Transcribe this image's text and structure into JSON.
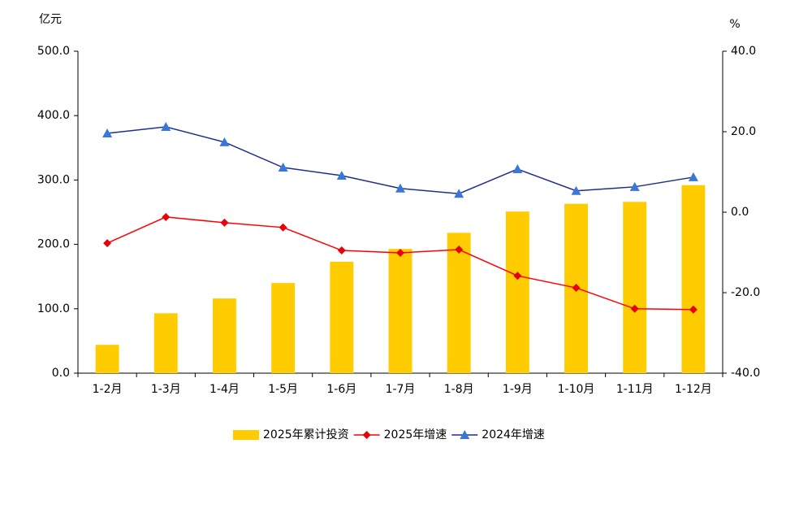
{
  "chart_data": {
    "type": "bar-line",
    "y_label": "亿元",
    "y2_label": "%",
    "categories": [
      "1-2月",
      "1-3月",
      "1-4月",
      "1-5月",
      "1-6月",
      "1-7月",
      "1-8月",
      "1-9月",
      "1-10月",
      "1-11月",
      "1-12月"
    ],
    "series": [
      {
        "name": "2025年累计投资",
        "type": "bar",
        "axis": "y",
        "color": "#FFCC00",
        "values": [
          44,
          93,
          116,
          140,
          173,
          193,
          218,
          251,
          263,
          266,
          292
        ]
      },
      {
        "name": "2025年增速",
        "type": "line",
        "axis": "y2",
        "color": "#FF0000",
        "marker": "diamond",
        "marker_color": "#E8000B",
        "values": [
          -7.7,
          -1.2,
          -2.6,
          -3.8,
          -9.5,
          -10.1,
          -9.3,
          -15.8,
          -18.8,
          -24.0,
          -24.2
        ]
      },
      {
        "name": "2024年增速",
        "type": "line",
        "axis": "y2",
        "color": "#1F2F8C",
        "marker": "triangle",
        "marker_color": "#3A78D8",
        "values": [
          19.6,
          21.2,
          17.4,
          11.1,
          9.1,
          5.9,
          4.6,
          10.7,
          5.3,
          6.3,
          8.7
        ]
      }
    ],
    "ylim": [
      0,
      500
    ],
    "yticks": [
      {
        "value": 0,
        "label": "0.0"
      },
      {
        "value": 100,
        "label": "100.0"
      },
      {
        "value": 200,
        "label": "200.0"
      },
      {
        "value": 300,
        "label": "300.0"
      },
      {
        "value": 400,
        "label": "400.0"
      },
      {
        "value": 500,
        "label": "500.0"
      }
    ],
    "y2lim": [
      -40,
      40
    ],
    "y2ticks": [
      {
        "value": -40,
        "label": "-40.0"
      },
      {
        "value": -20,
        "label": "-20.0"
      },
      {
        "value": 0,
        "label": "0.0"
      },
      {
        "value": 20,
        "label": "20.0"
      },
      {
        "value": 40,
        "label": "40.0"
      }
    ],
    "grid": false,
    "legend": "bottom"
  }
}
